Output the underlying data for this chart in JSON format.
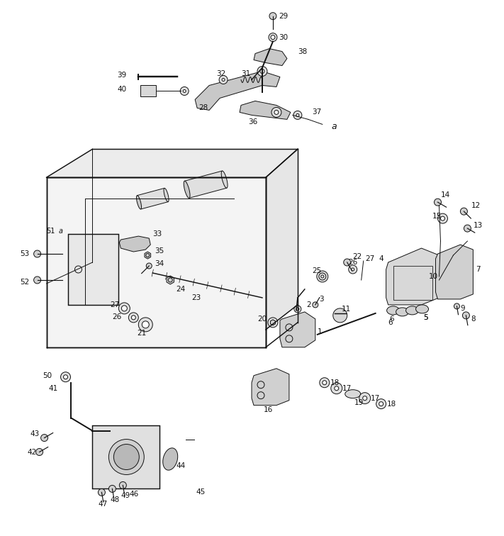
{
  "fig_width": 7.11,
  "fig_height": 7.56,
  "dpi": 100,
  "bg": "#ffffff",
  "lc": "#111111",
  "lw": 0.7,
  "fs": 7.5
}
